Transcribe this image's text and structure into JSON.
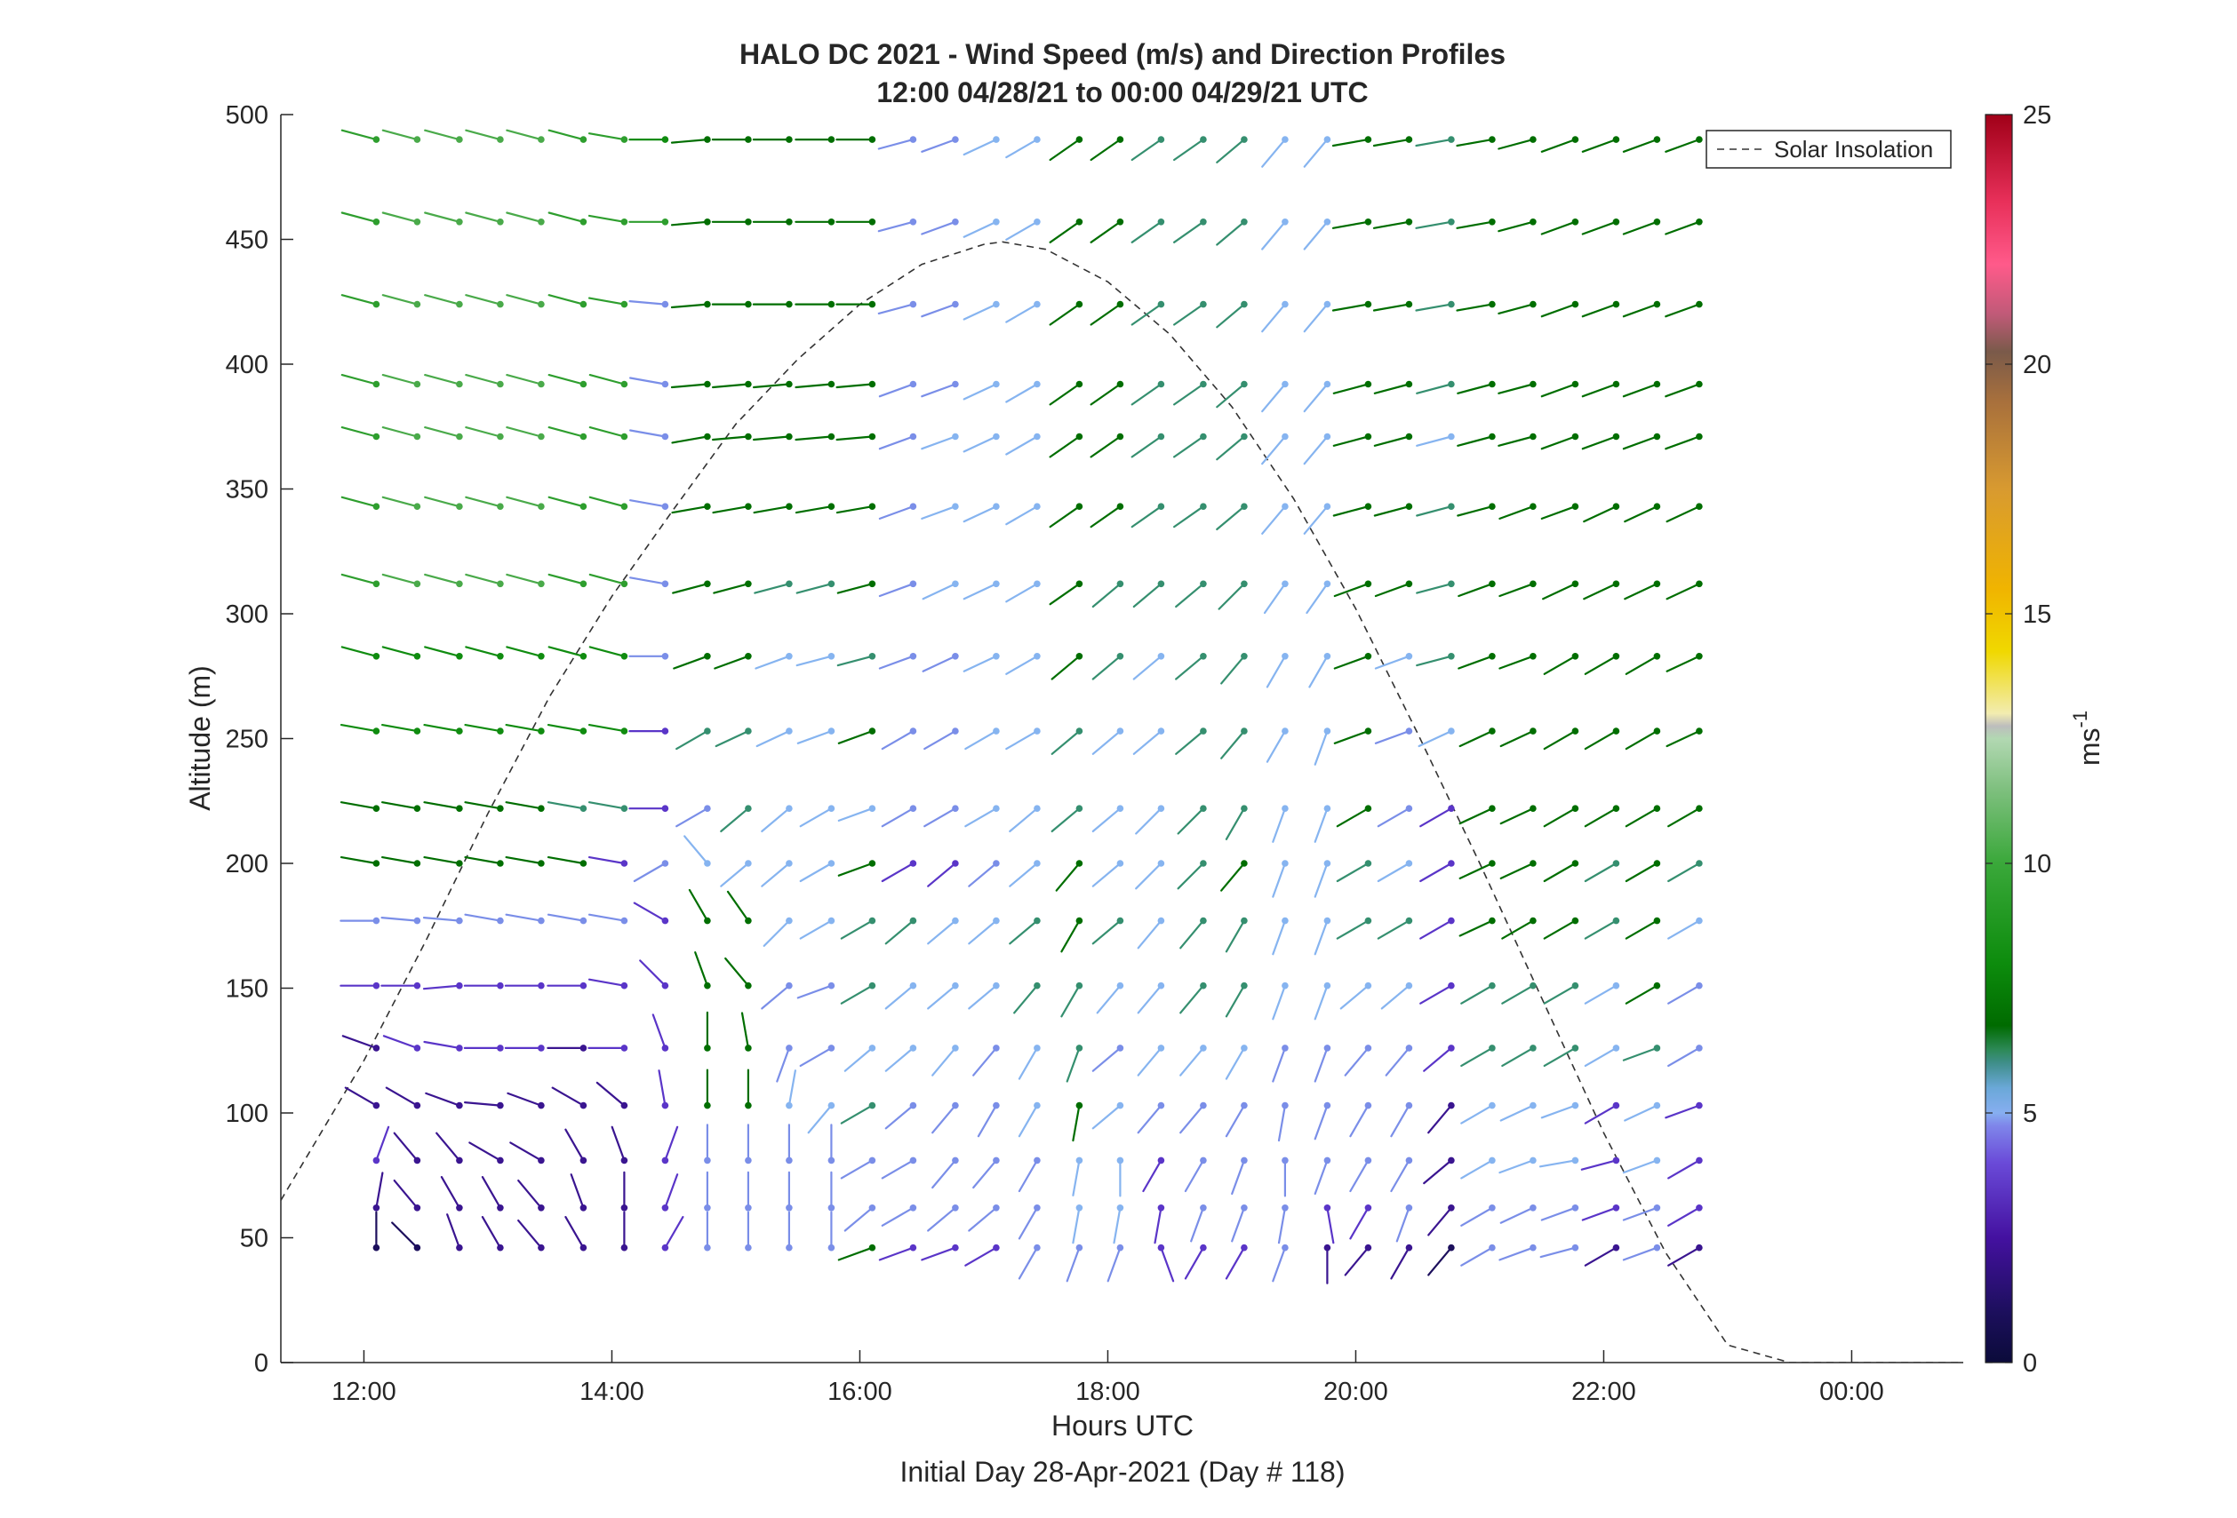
{
  "chart_data": {
    "type": "wind-barb-profile",
    "title": "HALO DC 2021 - Wind Speed (m/s) and Direction Profiles",
    "subtitle": "12:00 04/28/21 to 00:00 04/29/21  UTC",
    "xlabel": "Hours UTC",
    "xlabel_sub": "Initial Day 28-Apr-2021 (Day # 118)",
    "ylabel": "Altitude (m)",
    "xlim": [
      11.33,
      24.9
    ],
    "ylim": [
      0,
      500
    ],
    "x_ticks": [
      12,
      14,
      16,
      18,
      20,
      22,
      24
    ],
    "x_tick_labels": [
      "12:00",
      "14:00",
      "16:00",
      "18:00",
      "20:00",
      "22:00",
      "00:00"
    ],
    "y_ticks": [
      0,
      50,
      100,
      150,
      200,
      250,
      300,
      350,
      400,
      450,
      500
    ],
    "y_tick_labels": [
      "0",
      "50",
      "100",
      "150",
      "200",
      "250",
      "300",
      "350",
      "400",
      "450",
      "500"
    ],
    "colorbar": {
      "label": "ms",
      "label_exp": "-1",
      "range": [
        0,
        25
      ],
      "ticks": [
        0,
        5,
        10,
        15,
        20,
        25
      ],
      "tick_labels": [
        "0",
        "5",
        "10",
        "15",
        "20",
        "25"
      ]
    },
    "legend": {
      "entries": [
        "Solar Insolation"
      ],
      "placement": "top-right"
    },
    "solar_insolation": {
      "style": "dashed",
      "x": [
        11.33,
        12.0,
        12.5,
        13.0,
        13.5,
        14.0,
        14.5,
        15.0,
        15.5,
        16.0,
        16.5,
        17.0,
        17.15,
        17.5,
        18.0,
        18.5,
        19.0,
        19.5,
        20.0,
        20.5,
        21.0,
        21.5,
        22.0,
        22.5,
        23.0,
        23.5,
        23.7,
        24.9
      ],
      "y": [
        65,
        121,
        169,
        220,
        267,
        307,
        342,
        376,
        402,
        424,
        440,
        448,
        449,
        446,
        433,
        412,
        383,
        346,
        302,
        252,
        200,
        146,
        92,
        44,
        7,
        0,
        0,
        0
      ]
    },
    "barb_times": [
      12.1,
      12.43,
      12.77,
      13.1,
      13.43,
      13.77,
      14.1,
      14.43,
      14.77,
      15.1,
      15.43,
      15.77,
      16.1,
      16.43,
      16.77,
      17.1,
      17.43,
      17.77,
      18.1,
      18.43,
      18.77,
      19.1,
      19.43,
      19.77,
      20.1,
      20.43,
      20.77,
      21.1,
      21.43,
      21.77,
      22.1,
      22.43,
      22.77
    ],
    "barb_altitudes": [
      46,
      62,
      81,
      103,
      126,
      151,
      177,
      200,
      222,
      253,
      283,
      312,
      343,
      371,
      392,
      424,
      457,
      490
    ],
    "direction_deg": [
      [
        0,
        315,
        340,
        330,
        320,
        330,
        0,
        30,
        0,
        0,
        0,
        0,
        250,
        250,
        250,
        240,
        210,
        200,
        200,
        160,
        210,
        210,
        200,
        180,
        220,
        210,
        220,
        240,
        250,
        255,
        240,
        250,
        240
      ],
      [
        10,
        320,
        330,
        330,
        320,
        340,
        0,
        20,
        0,
        0,
        0,
        0,
        230,
        240,
        230,
        230,
        210,
        190,
        190,
        190,
        200,
        200,
        190,
        170,
        210,
        200,
        220,
        240,
        245,
        250,
        250,
        250,
        240
      ],
      [
        20,
        320,
        320,
        300,
        300,
        330,
        340,
        20,
        0,
        0,
        0,
        0,
        240,
        240,
        220,
        220,
        210,
        190,
        180,
        210,
        210,
        200,
        180,
        200,
        210,
        210,
        230,
        240,
        250,
        260,
        255,
        250,
        240
      ],
      [
        300,
        300,
        290,
        275,
        290,
        300,
        310,
        350,
        0,
        0,
        10,
        220,
        240,
        230,
        220,
        210,
        210,
        190,
        230,
        220,
        220,
        210,
        190,
        200,
        210,
        210,
        220,
        240,
        245,
        250,
        240,
        245,
        250
      ],
      [
        290,
        290,
        280,
        270,
        270,
        270,
        270,
        340,
        0,
        350,
        200,
        240,
        230,
        230,
        220,
        220,
        210,
        200,
        230,
        220,
        220,
        210,
        200,
        200,
        220,
        220,
        230,
        240,
        240,
        240,
        240,
        250,
        240
      ],
      [
        270,
        270,
        265,
        270,
        270,
        270,
        280,
        315,
        340,
        320,
        230,
        250,
        240,
        230,
        230,
        230,
        220,
        210,
        220,
        220,
        220,
        210,
        200,
        200,
        230,
        230,
        240,
        240,
        240,
        240,
        240,
        240,
        240
      ],
      [
        270,
        275,
        275,
        280,
        280,
        280,
        280,
        300,
        330,
        325,
        225,
        240,
        240,
        230,
        230,
        230,
        230,
        210,
        230,
        220,
        220,
        210,
        200,
        200,
        240,
        240,
        240,
        245,
        240,
        240,
        240,
        240,
        240
      ],
      [
        280,
        280,
        280,
        280,
        280,
        280,
        280,
        240,
        320,
        230,
        230,
        240,
        250,
        240,
        230,
        230,
        230,
        220,
        230,
        225,
        225,
        220,
        200,
        200,
        240,
        240,
        240,
        245,
        245,
        240,
        240,
        240,
        240
      ],
      [
        280,
        280,
        280,
        280,
        280,
        280,
        280,
        270,
        240,
        230,
        230,
        240,
        250,
        240,
        240,
        240,
        230,
        230,
        230,
        225,
        225,
        210,
        200,
        200,
        240,
        240,
        240,
        245,
        245,
        240,
        240,
        240,
        240
      ],
      [
        280,
        280,
        280,
        280,
        280,
        280,
        280,
        270,
        240,
        245,
        245,
        250,
        250,
        240,
        240,
        240,
        240,
        230,
        230,
        230,
        230,
        220,
        210,
        200,
        250,
        250,
        245,
        245,
        245,
        240,
        240,
        240,
        245
      ],
      [
        285,
        285,
        285,
        285,
        285,
        285,
        285,
        270,
        250,
        250,
        250,
        255,
        255,
        250,
        245,
        245,
        240,
        230,
        230,
        230,
        230,
        220,
        210,
        210,
        250,
        250,
        255,
        250,
        250,
        240,
        240,
        240,
        245
      ],
      [
        285,
        285,
        285,
        285,
        285,
        285,
        285,
        280,
        255,
        255,
        255,
        255,
        255,
        250,
        245,
        245,
        240,
        235,
        230,
        230,
        230,
        225,
        215,
        215,
        250,
        250,
        255,
        250,
        250,
        245,
        245,
        245,
        245
      ],
      [
        285,
        285,
        285,
        285,
        285,
        285,
        285,
        280,
        260,
        260,
        260,
        260,
        260,
        250,
        250,
        245,
        240,
        235,
        235,
        235,
        235,
        230,
        220,
        220,
        255,
        255,
        255,
        255,
        250,
        250,
        245,
        245,
        245
      ],
      [
        285,
        285,
        285,
        285,
        285,
        285,
        285,
        280,
        260,
        265,
        265,
        265,
        265,
        250,
        250,
        245,
        240,
        235,
        235,
        235,
        235,
        230,
        220,
        220,
        255,
        255,
        255,
        255,
        255,
        250,
        250,
        250,
        250
      ],
      [
        285,
        285,
        285,
        285,
        285,
        285,
        285,
        280,
        265,
        265,
        265,
        265,
        265,
        250,
        250,
        245,
        240,
        235,
        235,
        235,
        235,
        230,
        220,
        220,
        255,
        255,
        255,
        255,
        255,
        250,
        250,
        250,
        250
      ],
      [
        285,
        285,
        285,
        285,
        285,
        285,
        280,
        275,
        265,
        270,
        270,
        270,
        270,
        255,
        250,
        245,
        240,
        235,
        235,
        235,
        235,
        230,
        220,
        220,
        260,
        260,
        260,
        260,
        255,
        250,
        250,
        250,
        250
      ],
      [
        285,
        285,
        285,
        285,
        285,
        285,
        280,
        270,
        265,
        270,
        270,
        270,
        270,
        255,
        250,
        245,
        240,
        235,
        235,
        235,
        235,
        230,
        220,
        220,
        260,
        260,
        260,
        260,
        255,
        250,
        250,
        250,
        250
      ],
      [
        285,
        285,
        285,
        285,
        285,
        285,
        280,
        270,
        265,
        270,
        270,
        270,
        270,
        255,
        250,
        245,
        240,
        235,
        235,
        235,
        235,
        230,
        220,
        220,
        260,
        260,
        260,
        260,
        255,
        250,
        250,
        250,
        250
      ]
    ],
    "speed_ms": [
      [
        1,
        1,
        2,
        2,
        2,
        2,
        2,
        3,
        4,
        4,
        4,
        4,
        7,
        3,
        3,
        3,
        4,
        4,
        4,
        3,
        3,
        3,
        4,
        2,
        2,
        2,
        1,
        4,
        4,
        4,
        2,
        4,
        2
      ],
      [
        2,
        2,
        2,
        2,
        2,
        2,
        2,
        3,
        4,
        4,
        4,
        4,
        4,
        4,
        4,
        4,
        4,
        5,
        5,
        3,
        4,
        4,
        4,
        3,
        3,
        4,
        2,
        4,
        4,
        4,
        3,
        4,
        3
      ],
      [
        3,
        2,
        2,
        2,
        2,
        2,
        2,
        3,
        4,
        4,
        4,
        4,
        4,
        4,
        4,
        4,
        4,
        5,
        5,
        3,
        4,
        4,
        4,
        4,
        4,
        4,
        2,
        5,
        5,
        5,
        3,
        5,
        3
      ],
      [
        2,
        2,
        2,
        2,
        2,
        2,
        2,
        3,
        7,
        7,
        5,
        5,
        6,
        4,
        4,
        4,
        5,
        7,
        5,
        4,
        4,
        4,
        4,
        4,
        4,
        4,
        2,
        5,
        5,
        5,
        3,
        5,
        3
      ],
      [
        2,
        3,
        3,
        3,
        3,
        2,
        3,
        3,
        7,
        7,
        4,
        4,
        5,
        5,
        5,
        4,
        5,
        6,
        4,
        5,
        5,
        5,
        4,
        4,
        4,
        4,
        3,
        6,
        6,
        6,
        5,
        6,
        4
      ],
      [
        3,
        3,
        3,
        3,
        3,
        3,
        3,
        3,
        7,
        7,
        4,
        4,
        6,
        5,
        5,
        5,
        6,
        6,
        5,
        5,
        6,
        6,
        5,
        5,
        5,
        5,
        3,
        6,
        6,
        6,
        5,
        7,
        4
      ],
      [
        4,
        4,
        4,
        4,
        4,
        4,
        4,
        3,
        7,
        7,
        5,
        5,
        6,
        6,
        5,
        5,
        6,
        7,
        6,
        5,
        6,
        6,
        5,
        5,
        6,
        6,
        3,
        7,
        7,
        7,
        6,
        7,
        5
      ],
      [
        7,
        7,
        7,
        7,
        7,
        7,
        3,
        4,
        5,
        5,
        5,
        5,
        7,
        3,
        3,
        4,
        5,
        7,
        5,
        5,
        6,
        7,
        5,
        5,
        6,
        5,
        3,
        7,
        7,
        7,
        6,
        7,
        6
      ],
      [
        7,
        7,
        7,
        7,
        7,
        6,
        6,
        3,
        4,
        6,
        5,
        5,
        5,
        4,
        4,
        5,
        5,
        6,
        5,
        5,
        6,
        6,
        5,
        5,
        7,
        4,
        3,
        7,
        7,
        7,
        7,
        7,
        7
      ],
      [
        8,
        8,
        8,
        8,
        8,
        8,
        8,
        3,
        6,
        6,
        5,
        5,
        7,
        4,
        4,
        5,
        5,
        6,
        5,
        5,
        6,
        6,
        5,
        5,
        7,
        4,
        5,
        7,
        7,
        7,
        7,
        7,
        7
      ],
      [
        8,
        8,
        8,
        8,
        8,
        8,
        8,
        4,
        7,
        7,
        5,
        5,
        6,
        4,
        4,
        5,
        5,
        7,
        6,
        5,
        6,
        6,
        5,
        5,
        7,
        5,
        6,
        7,
        7,
        7,
        7,
        7,
        7
      ],
      [
        9,
        10,
        10,
        10,
        10,
        9,
        9,
        4,
        7,
        7,
        6,
        6,
        7,
        4,
        5,
        5,
        5,
        7,
        6,
        6,
        6,
        6,
        5,
        5,
        7,
        7,
        6,
        7,
        7,
        7,
        7,
        7,
        7
      ],
      [
        9,
        10,
        10,
        10,
        10,
        9,
        9,
        4,
        7,
        7,
        7,
        7,
        7,
        4,
        5,
        5,
        5,
        7,
        7,
        6,
        6,
        6,
        5,
        5,
        7,
        7,
        6,
        7,
        7,
        7,
        7,
        7,
        7
      ],
      [
        9,
        10,
        10,
        10,
        10,
        9,
        9,
        4,
        7,
        7,
        7,
        7,
        7,
        4,
        5,
        5,
        5,
        7,
        7,
        6,
        6,
        6,
        5,
        5,
        7,
        7,
        5,
        7,
        7,
        7,
        7,
        7,
        7
      ],
      [
        9,
        10,
        10,
        10,
        10,
        9,
        9,
        4,
        7,
        7,
        7,
        7,
        7,
        4,
        4,
        5,
        5,
        7,
        7,
        6,
        6,
        6,
        5,
        5,
        7,
        7,
        6,
        7,
        7,
        7,
        7,
        7,
        7
      ],
      [
        9,
        10,
        10,
        10,
        10,
        9,
        9,
        4,
        7,
        7,
        7,
        7,
        7,
        4,
        4,
        5,
        5,
        7,
        7,
        6,
        6,
        6,
        5,
        5,
        7,
        7,
        6,
        7,
        7,
        7,
        7,
        7,
        7
      ],
      [
        9,
        10,
        10,
        10,
        10,
        9,
        9,
        9,
        7,
        7,
        7,
        7,
        7,
        4,
        4,
        5,
        5,
        7,
        7,
        6,
        6,
        6,
        5,
        5,
        7,
        7,
        6,
        7,
        7,
        7,
        7,
        7,
        7
      ],
      [
        9,
        10,
        10,
        10,
        10,
        9,
        9,
        8,
        7,
        7,
        7,
        7,
        7,
        4,
        4,
        5,
        5,
        7,
        7,
        6,
        6,
        6,
        5,
        5,
        7,
        7,
        6,
        7,
        7,
        7,
        7,
        7,
        7
      ]
    ]
  }
}
